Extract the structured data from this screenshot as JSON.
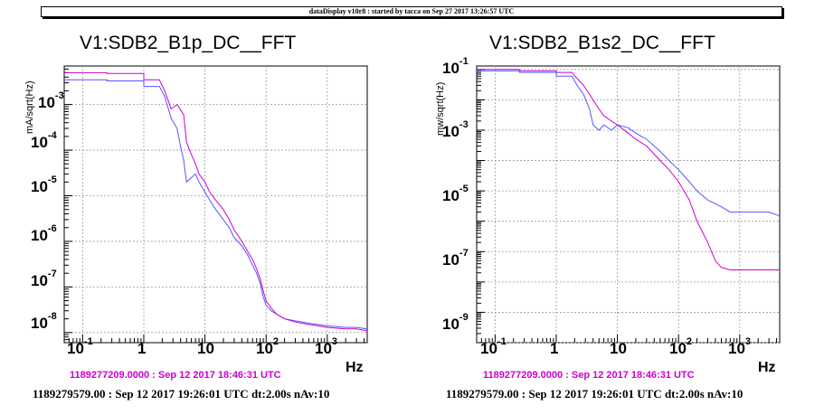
{
  "banner": "dataDisplay v10r8 : started by tacca on Sep 27 2017 13:26:57 UTC",
  "panels": [
    {
      "title": "V1:SDB2_B1p_DC__FFT",
      "ylabel": "mA/sqrt(Hz)",
      "xunit": "Hz",
      "timestamp1": "1189277209.0000 : Sep 12 2017 18:46:31 UTC",
      "timestamp2": "1189279579.00 : Sep 12 2017 19:26:01 UTC dt:2.00s nAv:10",
      "yticks": [
        {
          "base": "10",
          "exp": "-3"
        },
        {
          "base": "10",
          "exp": "-4"
        },
        {
          "base": "10",
          "exp": "-5"
        },
        {
          "base": "10",
          "exp": "-6"
        },
        {
          "base": "10",
          "exp": "-7"
        },
        {
          "base": "10",
          "exp": "-8"
        }
      ],
      "xticks": [
        {
          "base": "10",
          "exp": "-1"
        },
        {
          "base": "1",
          "exp": ""
        },
        {
          "base": "10",
          "exp": ""
        },
        {
          "base": "10",
          "exp": "2"
        },
        {
          "base": "10",
          "exp": "3"
        }
      ]
    },
    {
      "title": "V1:SDB2_B1s2_DC__FFT",
      "ylabel": "mw/sqrt(Hz)",
      "xunit": "Hz",
      "timestamp1": "1189277209.0000 : Sep 12 2017 18:46:31 UTC",
      "timestamp2": "1189279579.00 : Sep 12 2017 19:26:01 UTC dt:2.00s nAv:10",
      "yticks": [
        {
          "base": "10",
          "exp": "-1"
        },
        {
          "base": "10",
          "exp": "-3"
        },
        {
          "base": "10",
          "exp": "-5"
        },
        {
          "base": "10",
          "exp": "-7"
        },
        {
          "base": "10",
          "exp": "-9"
        }
      ],
      "xticks": [
        {
          "base": "10",
          "exp": "-1"
        },
        {
          "base": "1",
          "exp": ""
        },
        {
          "base": "10",
          "exp": ""
        },
        {
          "base": "10",
          "exp": "2"
        },
        {
          "base": "10",
          "exp": "3"
        }
      ]
    }
  ],
  "chart_data": [
    {
      "type": "line",
      "title": "V1:SDB2_B1p_DC__FFT",
      "xlabel": "Hz",
      "ylabel": "mA/sqrt(Hz)",
      "xscale": "log",
      "yscale": "log",
      "xlim": [
        0.05,
        4500
      ],
      "ylim": [
        6e-09,
        0.007
      ],
      "grid": true,
      "series": [
        {
          "color": "#5555ff",
          "x": [
            0.05,
            0.25,
            0.25,
            1.0,
            1.0,
            1.8,
            2.2,
            2.8,
            3.5,
            4.0,
            4.5,
            5.0,
            6.0,
            7.0,
            8.0,
            10,
            12,
            15,
            20,
            25,
            30,
            40,
            50,
            60,
            70,
            80,
            90,
            100,
            120,
            150,
            200,
            300,
            500,
            700,
            1000,
            2000,
            3000,
            4500
          ],
          "y": [
            0.0035,
            0.0035,
            0.0033,
            0.0033,
            0.0025,
            0.0025,
            0.0015,
            0.0005,
            0.0003,
            0.00012,
            6e-05,
            2e-05,
            2.5e-05,
            3e-05,
            2e-05,
            1.2e-05,
            8e-06,
            5e-06,
            3e-06,
            2e-06,
            1.2e-06,
            8e-07,
            5e-07,
            3e-07,
            2e-07,
            1.2e-07,
            6e-08,
            4e-08,
            3e-08,
            2.5e-08,
            2e-08,
            1.8e-08,
            1.6e-08,
            1.5e-08,
            1.4e-08,
            1.3e-08,
            1.3e-08,
            1.2e-08
          ]
        },
        {
          "color": "#cc00cc",
          "x": [
            0.05,
            0.25,
            0.25,
            1.0,
            1.0,
            1.8,
            2.2,
            2.8,
            3.5,
            4.5,
            5.0,
            6.0,
            7.0,
            8.0,
            10,
            12,
            15,
            20,
            25,
            30,
            40,
            50,
            60,
            70,
            80,
            90,
            100,
            120,
            150,
            200,
            300,
            500,
            700,
            1000,
            2000,
            3000,
            4500
          ],
          "y": [
            0.005,
            0.005,
            0.0048,
            0.0048,
            0.0035,
            0.0035,
            0.002,
            0.0008,
            0.001,
            0.0006,
            0.00015,
            8e-05,
            5e-05,
            3e-05,
            2e-05,
            1.2e-05,
            8e-06,
            5e-06,
            3e-06,
            1.8e-06,
            1e-06,
            6e-07,
            4e-07,
            2.5e-07,
            1.5e-07,
            8e-08,
            5e-08,
            3.5e-08,
            2.5e-08,
            2e-08,
            1.7e-08,
            1.5e-08,
            1.4e-08,
            1.3e-08,
            1.2e-08,
            1.2e-08,
            1.1e-08
          ]
        }
      ]
    },
    {
      "type": "line",
      "title": "V1:SDB2_B1s2_DC__FFT",
      "xlabel": "Hz",
      "ylabel": "mw/sqrt(Hz)",
      "xscale": "log",
      "yscale": "log",
      "xlim": [
        0.05,
        4500
      ],
      "ylim": [
        1e-10,
        0.13
      ],
      "grid": true,
      "series": [
        {
          "color": "#5555ff",
          "x": [
            0.05,
            0.25,
            0.25,
            1.0,
            1.0,
            1.8,
            2.2,
            2.8,
            3.5,
            4.0,
            5.0,
            6.0,
            8.0,
            10,
            15,
            20,
            30,
            50,
            70,
            100,
            150,
            200,
            300,
            500,
            700,
            1000,
            2000,
            3000,
            4500
          ],
          "y": [
            0.09,
            0.09,
            0.08,
            0.08,
            0.06,
            0.06,
            0.03,
            0.015,
            0.005,
            0.0015,
            0.001,
            0.0015,
            0.001,
            0.0015,
            0.0012,
            0.0008,
            0.0005,
            0.0002,
            0.0001,
            5e-05,
            2e-05,
            1e-05,
            5e-06,
            3e-06,
            2e-06,
            2e-06,
            2e-06,
            2e-06,
            1.5e-06
          ]
        },
        {
          "color": "#cc00cc",
          "x": [
            0.05,
            0.25,
            0.25,
            1.0,
            1.0,
            1.8,
            2.2,
            2.8,
            3.5,
            5.0,
            6.0,
            8.0,
            10,
            15,
            20,
            30,
            50,
            70,
            100,
            150,
            200,
            300,
            400,
            500,
            700,
            1000,
            2000,
            3000,
            4500
          ],
          "y": [
            0.1,
            0.1,
            0.09,
            0.09,
            0.08,
            0.08,
            0.05,
            0.03,
            0.015,
            0.005,
            0.003,
            0.002,
            0.0015,
            0.0008,
            0.0005,
            0.0003,
            0.0001,
            5e-05,
            2e-05,
            5e-06,
            1e-06,
            2e-07,
            5e-08,
            3e-08,
            2.5e-08,
            2.5e-08,
            2.5e-08,
            2.5e-08,
            2.5e-08
          ]
        }
      ]
    }
  ]
}
